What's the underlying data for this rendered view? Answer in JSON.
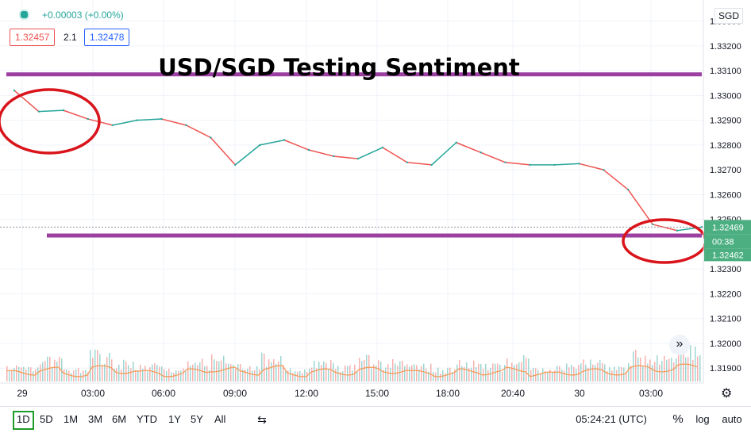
{
  "header": {
    "change_text": "+0.00003 (+0.00%)",
    "bid": "1.32457",
    "spread": "2.1",
    "ask": "1.32478",
    "currency": "SGD"
  },
  "annotation": {
    "title": "USD/SGD Testing Sentiment",
    "line_color": "#9b3fa0",
    "circle_color": "#d9141b"
  },
  "price_labels": {
    "current": "1.32469",
    "countdown": "00:38",
    "lower": "1.32462"
  },
  "bottom_bar": {
    "timeframes": [
      "1D",
      "5D",
      "1M",
      "3M",
      "6M",
      "YTD",
      "1Y",
      "5Y",
      "All"
    ],
    "active": "1D",
    "clock": "05:24:21 (UTC)",
    "percent": "%",
    "log": "log",
    "auto": "auto"
  },
  "colors": {
    "up": "#26a69a",
    "down": "#ef5350",
    "price_label_bg": "#4caf82",
    "volume_line": "#f39a53"
  },
  "chart_data": {
    "type": "line",
    "title": "USD/SGD Testing Sentiment",
    "ylim": [
      1.3184,
      1.33385
    ],
    "y_ticks": [
      "1.33300",
      "1.33200",
      "1.33100",
      "1.33000",
      "1.32900",
      "1.32800",
      "1.32700",
      "1.32600",
      "1.32500",
      "1.32300",
      "1.32200",
      "1.32100",
      "1.32000",
      "1.31900"
    ],
    "x_ticks": [
      "29",
      "03:00",
      "06:00",
      "09:00",
      "12:00",
      "15:00",
      "18:00",
      "20:40",
      "30",
      "03:00"
    ],
    "series": [
      {
        "x": [
          "29 00:00",
          "29 01:00",
          "29 02:00",
          "29 03:00",
          "29 04:00",
          "29 05:00",
          "29 06:00",
          "29 07:00",
          "29 08:00",
          "29 09:00",
          "29 10:00",
          "29 11:00",
          "29 12:00",
          "29 13:00",
          "29 14:00",
          "29 15:00",
          "29 16:00",
          "29 17:00",
          "29 18:00",
          "29 19:00",
          "29 20:00",
          "29 21:00",
          "29 22:00",
          "29 23:00",
          "30 00:00",
          "30 01:00",
          "30 02:00",
          "30 03:00",
          "30 04:00"
        ],
        "values": [
          1.3302,
          1.32935,
          1.3294,
          1.32905,
          1.3288,
          1.329,
          1.32905,
          1.3288,
          1.3283,
          1.3272,
          1.328,
          1.3282,
          1.3278,
          1.32755,
          1.32745,
          1.3279,
          1.3273,
          1.3272,
          1.3281,
          1.3277,
          1.3273,
          1.3272,
          1.3272,
          1.32725,
          1.327,
          1.3262,
          1.3248,
          1.32455,
          1.32469
        ]
      }
    ],
    "volume_series": [
      3,
      5,
      2,
      6,
      4,
      3,
      2,
      4,
      5,
      3,
      6,
      2,
      4,
      3,
      5,
      4,
      3,
      2,
      4,
      3,
      5,
      2,
      3,
      4,
      3,
      6,
      5,
      7,
      4
    ],
    "resistance": 1.33085,
    "support": 1.32435
  }
}
